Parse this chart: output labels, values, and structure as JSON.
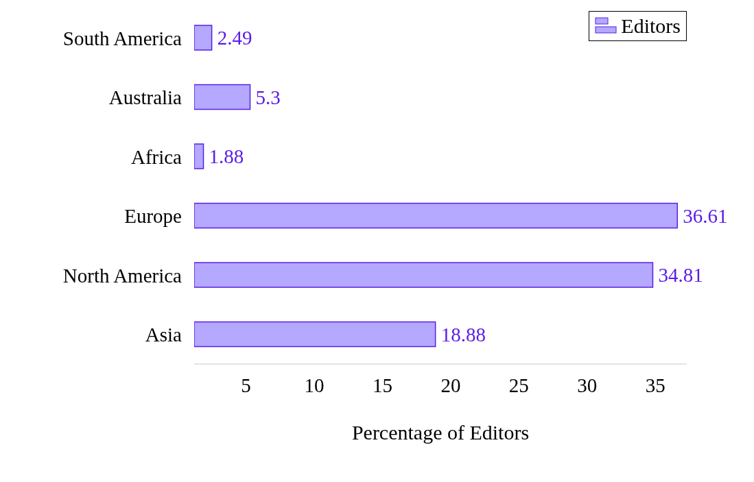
{
  "chart_data": {
    "type": "bar",
    "orientation": "horizontal",
    "xlabel": "Percentage of Editors",
    "categories": [
      "South America",
      "Australia",
      "Africa",
      "Europe",
      "North America",
      "Asia"
    ],
    "series": [
      {
        "name": "Editors",
        "color": "#b4a8ff",
        "values": [
          2.49,
          5.3,
          1.88,
          36.61,
          34.81,
          18.88
        ]
      }
    ],
    "xlim": [
      1.2,
      37.3
    ],
    "xticks": [
      5,
      10,
      15,
      20,
      25,
      30,
      35
    ],
    "data_labels": true,
    "grid": false,
    "legend": "top right"
  }
}
